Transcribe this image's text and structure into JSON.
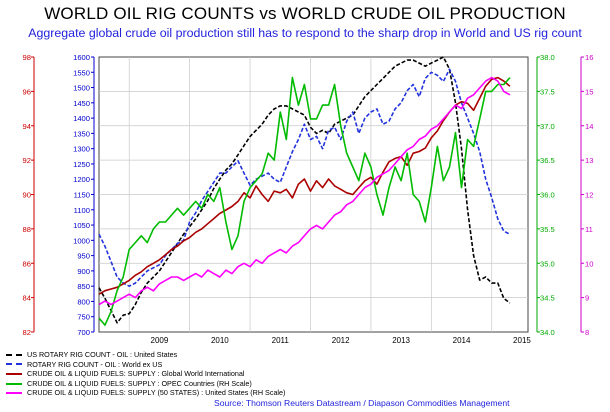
{
  "title": "WORLD OIL RIG COUNTS vs WORLD CRUDE OIL PRODUCTION",
  "subtitle": "Aggregate global crude oil production still has to respond to the sharp drop in World and US rig count",
  "source": "Source: Thomson Reuters Datastream / Diapason Commodities Management",
  "colors": {
    "us_rig": "#000000",
    "world_rig": "#2233dd",
    "global": "#aa0000",
    "opec": "#00bb00",
    "us_prod": "#ff00ff",
    "axis_red": "#cc0000",
    "axis_blue": "#0000cc",
    "axis_green": "#00aa00",
    "axis_magenta": "#cc00cc"
  },
  "chart_data": {
    "type": "line",
    "x_ticks": [
      "2009",
      "2010",
      "2011",
      "2012",
      "2013",
      "2014",
      "2015"
    ],
    "x_range": [
      2008.5,
      2015.6
    ],
    "grid": true,
    "axes": {
      "left_red": {
        "ticks": [
          "82",
          "84",
          "86",
          "88",
          "90",
          "92",
          "94",
          "96",
          "98"
        ],
        "range": [
          82,
          98
        ]
      },
      "left_blue": {
        "ticks": [
          "700",
          "750",
          "800",
          "850",
          "900",
          "950",
          "1000",
          "1050",
          "1100",
          "1150",
          "1200",
          "1250",
          "1300",
          "1350",
          "1400",
          "1450",
          "1500",
          "1550",
          "1600"
        ],
        "range": [
          700,
          1600
        ]
      },
      "right_green": {
        "ticks": [
          "34.0",
          "34.5",
          "35.0",
          "35.5",
          "36.0",
          "36.5",
          "37.0",
          "37.5",
          "38.0"
        ],
        "range": [
          34.0,
          38.0
        ]
      },
      "right_magenta": {
        "ticks": [
          "8",
          "9",
          "10",
          "11",
          "12",
          "13",
          "14",
          "15",
          "16"
        ],
        "range": [
          8,
          16
        ]
      }
    },
    "series": [
      {
        "name": "US ROTARY RIG COUNT - OIL : United States",
        "axis": "left_blue",
        "style": "dashed",
        "x": [
          2008.5,
          2008.6,
          2008.7,
          2008.8,
          2008.9,
          2009.0,
          2009.1,
          2009.2,
          2009.3,
          2009.4,
          2009.5,
          2009.6,
          2009.7,
          2009.8,
          2009.9,
          2010.0,
          2010.1,
          2010.2,
          2010.3,
          2010.4,
          2010.5,
          2010.6,
          2010.7,
          2010.8,
          2010.9,
          2011.0,
          2011.1,
          2011.2,
          2011.3,
          2011.4,
          2011.5,
          2011.6,
          2011.7,
          2011.8,
          2011.9,
          2012.0,
          2012.1,
          2012.2,
          2012.3,
          2012.4,
          2012.5,
          2012.6,
          2012.7,
          2012.8,
          2012.9,
          2013.0,
          2013.1,
          2013.2,
          2013.3,
          2013.4,
          2013.5,
          2013.6,
          2013.7,
          2013.8,
          2013.9,
          2014.0,
          2014.1,
          2014.2,
          2014.3,
          2014.4,
          2014.5,
          2014.6,
          2014.7,
          2014.8,
          2014.9,
          2015.0,
          2015.1,
          2015.2,
          2015.3
        ],
        "values": [
          845,
          810,
          770,
          730,
          755,
          760,
          790,
          830,
          860,
          880,
          900,
          930,
          960,
          990,
          1020,
          1045,
          1070,
          1100,
          1130,
          1170,
          1200,
          1230,
          1250,
          1280,
          1310,
          1340,
          1360,
          1380,
          1410,
          1430,
          1440,
          1440,
          1430,
          1420,
          1410,
          1370,
          1350,
          1360,
          1350,
          1380,
          1390,
          1400,
          1410,
          1440,
          1470,
          1490,
          1510,
          1530,
          1550,
          1570,
          1580,
          1590,
          1590,
          1580,
          1570,
          1580,
          1590,
          1600,
          1560,
          1450,
          1300,
          1100,
          950,
          870,
          880,
          860,
          860,
          810,
          795
        ]
      },
      {
        "name": "ROTARY RIG COUNT - OIL : World ex US",
        "axis": "left_blue",
        "style": "dashed",
        "x": [
          2008.5,
          2008.6,
          2008.7,
          2008.8,
          2008.9,
          2009.0,
          2009.1,
          2009.2,
          2009.3,
          2009.4,
          2009.5,
          2009.6,
          2009.7,
          2009.8,
          2009.9,
          2010.0,
          2010.1,
          2010.2,
          2010.3,
          2010.4,
          2010.5,
          2010.6,
          2010.7,
          2010.8,
          2010.9,
          2011.0,
          2011.1,
          2011.2,
          2011.3,
          2011.4,
          2011.5,
          2011.6,
          2011.7,
          2011.8,
          2011.9,
          2012.0,
          2012.1,
          2012.2,
          2012.3,
          2012.4,
          2012.5,
          2012.6,
          2012.7,
          2012.8,
          2012.9,
          2013.0,
          2013.1,
          2013.2,
          2013.3,
          2013.4,
          2013.5,
          2013.6,
          2013.7,
          2013.8,
          2013.9,
          2014.0,
          2014.1,
          2014.2,
          2014.3,
          2014.4,
          2014.5,
          2014.6,
          2014.7,
          2014.8,
          2014.9,
          2015.0,
          2015.1,
          2015.2,
          2015.3
        ],
        "values": [
          1020,
          980,
          930,
          880,
          860,
          850,
          860,
          880,
          900,
          910,
          920,
          950,
          970,
          990,
          1000,
          1060,
          1090,
          1130,
          1160,
          1190,
          1220,
          1220,
          1240,
          1260,
          1220,
          1180,
          1200,
          1210,
          1220,
          1200,
          1190,
          1240,
          1290,
          1330,
          1380,
          1330,
          1340,
          1300,
          1360,
          1370,
          1330,
          1390,
          1420,
          1350,
          1400,
          1420,
          1430,
          1380,
          1390,
          1430,
          1450,
          1490,
          1510,
          1470,
          1530,
          1550,
          1540,
          1520,
          1560,
          1520,
          1450,
          1400,
          1350,
          1290,
          1200,
          1140,
          1070,
          1030,
          1020
        ]
      },
      {
        "name": "CRUDE OIL & LIQUID FUELS: SUPPLY : Global World International",
        "axis": "left_red",
        "style": "solid",
        "x": [
          2008.5,
          2008.6,
          2008.7,
          2008.8,
          2008.9,
          2009.0,
          2009.1,
          2009.2,
          2009.3,
          2009.4,
          2009.5,
          2009.6,
          2009.7,
          2009.8,
          2009.9,
          2010.0,
          2010.1,
          2010.2,
          2010.3,
          2010.4,
          2010.5,
          2010.6,
          2010.7,
          2010.8,
          2010.9,
          2011.0,
          2011.1,
          2011.2,
          2011.3,
          2011.4,
          2011.5,
          2011.6,
          2011.7,
          2011.8,
          2011.9,
          2012.0,
          2012.1,
          2012.2,
          2012.3,
          2012.4,
          2012.5,
          2012.6,
          2012.7,
          2012.8,
          2012.9,
          2013.0,
          2013.1,
          2013.2,
          2013.3,
          2013.4,
          2013.5,
          2013.6,
          2013.7,
          2013.8,
          2013.9,
          2014.0,
          2014.1,
          2014.2,
          2014.3,
          2014.4,
          2014.5,
          2014.6,
          2014.7,
          2014.8,
          2014.9,
          2015.0,
          2015.1,
          2015.2,
          2015.3
        ],
        "values": [
          84.2,
          84.4,
          84.5,
          84.6,
          84.8,
          85.0,
          85.3,
          85.5,
          85.8,
          86.0,
          86.2,
          86.5,
          86.8,
          87.0,
          87.3,
          87.5,
          87.8,
          88.0,
          88.3,
          88.6,
          88.9,
          89.1,
          89.3,
          89.6,
          90.1,
          89.8,
          90.5,
          90.0,
          89.6,
          90.2,
          90.1,
          90.3,
          89.8,
          90.6,
          90.9,
          90.2,
          90.8,
          90.4,
          90.9,
          90.5,
          90.3,
          90.1,
          90.0,
          90.4,
          90.8,
          91.0,
          90.6,
          91.3,
          91.9,
          92.1,
          92.2,
          91.7,
          92.4,
          92.5,
          92.7,
          93.3,
          93.7,
          94.3,
          94.8,
          95.2,
          95.4,
          95.3,
          94.9,
          95.6,
          96.3,
          96.7,
          96.8,
          96.6,
          96.3
        ]
      },
      {
        "name": "CRUDE OIL & LIQUID FUELS: SUPPLY : OPEC Countries (RH Scale)",
        "axis": "right_green",
        "style": "solid",
        "x": [
          2008.5,
          2008.6,
          2008.7,
          2008.8,
          2008.9,
          2009.0,
          2009.1,
          2009.2,
          2009.3,
          2009.4,
          2009.5,
          2009.6,
          2009.7,
          2009.8,
          2009.9,
          2010.0,
          2010.1,
          2010.2,
          2010.3,
          2010.4,
          2010.5,
          2010.6,
          2010.7,
          2010.8,
          2010.9,
          2011.0,
          2011.1,
          2011.2,
          2011.3,
          2011.4,
          2011.5,
          2011.6,
          2011.7,
          2011.8,
          2011.9,
          2012.0,
          2012.1,
          2012.2,
          2012.3,
          2012.4,
          2012.5,
          2012.6,
          2012.7,
          2012.8,
          2012.9,
          2013.0,
          2013.1,
          2013.2,
          2013.3,
          2013.4,
          2013.5,
          2013.6,
          2013.7,
          2013.8,
          2013.9,
          2014.0,
          2014.1,
          2014.2,
          2014.3,
          2014.4,
          2014.5,
          2014.6,
          2014.7,
          2014.8,
          2014.9,
          2015.0,
          2015.1,
          2015.2,
          2015.3
        ],
        "values": [
          34.2,
          34.1,
          34.3,
          34.6,
          34.8,
          35.2,
          35.3,
          35.4,
          35.3,
          35.5,
          35.6,
          35.6,
          35.7,
          35.8,
          35.7,
          35.8,
          35.9,
          35.8,
          36.0,
          35.9,
          36.1,
          35.6,
          35.2,
          35.4,
          35.9,
          36.1,
          36.2,
          36.3,
          36.6,
          36.5,
          37.2,
          36.8,
          37.7,
          37.3,
          37.6,
          37.1,
          37.1,
          37.3,
          37.3,
          37.6,
          37.0,
          36.6,
          36.4,
          36.2,
          36.6,
          36.4,
          36.0,
          35.7,
          36.1,
          36.4,
          36.2,
          36.6,
          36.0,
          35.9,
          35.6,
          36.1,
          36.7,
          36.2,
          36.4,
          36.9,
          36.1,
          36.8,
          36.7,
          37.1,
          37.5,
          37.5,
          37.6,
          37.6,
          37.7
        ]
      },
      {
        "name": "CRUDE OIL & LIQUID FUELS: SUPPLY (50 STATES) : United States (RH Scale)",
        "axis": "right_magenta",
        "style": "solid",
        "x": [
          2008.5,
          2008.6,
          2008.7,
          2008.8,
          2008.9,
          2009.0,
          2009.1,
          2009.2,
          2009.3,
          2009.4,
          2009.5,
          2009.6,
          2009.7,
          2009.8,
          2009.9,
          2010.0,
          2010.1,
          2010.2,
          2010.3,
          2010.4,
          2010.5,
          2010.6,
          2010.7,
          2010.8,
          2010.9,
          2011.0,
          2011.1,
          2011.2,
          2011.3,
          2011.4,
          2011.5,
          2011.6,
          2011.7,
          2011.8,
          2011.9,
          2012.0,
          2012.1,
          2012.2,
          2012.3,
          2012.4,
          2012.5,
          2012.6,
          2012.7,
          2012.8,
          2012.9,
          2013.0,
          2013.1,
          2013.2,
          2013.3,
          2013.4,
          2013.5,
          2013.6,
          2013.7,
          2013.8,
          2013.9,
          2014.0,
          2014.1,
          2014.2,
          2014.3,
          2014.4,
          2014.5,
          2014.6,
          2014.7,
          2014.8,
          2014.9,
          2015.0,
          2015.1,
          2015.2,
          2015.3
        ],
        "values": [
          8.8,
          8.9,
          8.8,
          8.9,
          9.0,
          9.1,
          9.0,
          9.2,
          9.3,
          9.2,
          9.4,
          9.5,
          9.6,
          9.6,
          9.5,
          9.6,
          9.7,
          9.6,
          9.8,
          9.7,
          9.6,
          9.8,
          9.7,
          9.9,
          10.0,
          9.9,
          10.1,
          10.0,
          10.2,
          10.3,
          10.4,
          10.3,
          10.5,
          10.6,
          10.8,
          11.0,
          11.1,
          11.0,
          11.2,
          11.4,
          11.5,
          11.7,
          11.8,
          12.0,
          12.2,
          12.3,
          12.5,
          12.6,
          12.7,
          12.9,
          13.1,
          13.3,
          13.4,
          13.6,
          13.7,
          13.9,
          14.0,
          14.2,
          14.4,
          14.6,
          14.5,
          14.8,
          14.9,
          15.1,
          15.3,
          15.4,
          15.3,
          15.0,
          14.9
        ]
      }
    ]
  }
}
